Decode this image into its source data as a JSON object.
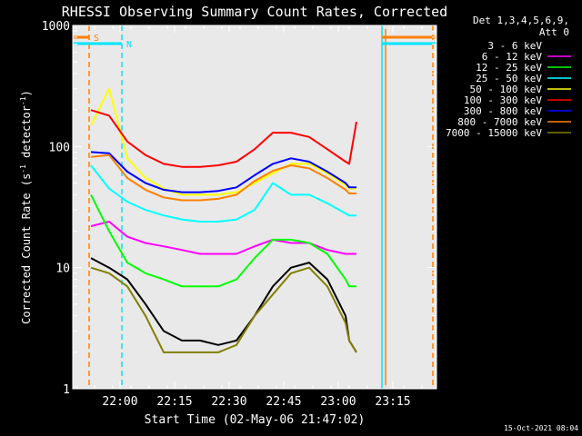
{
  "stamp": "15-Oct-2021 08:04",
  "colors": {
    "background": "#000000",
    "axis": "#ffffff",
    "bands": [
      "#000000",
      "#ff00ff",
      "#00ff00",
      "#00ffff",
      "#ffff00",
      "#ff0000",
      "#0000ff",
      "#ff8000",
      "#808000"
    ],
    "cyan": "#00e5ff",
    "orange": "#ff7f00"
  },
  "chart_data": {
    "type": "line",
    "title": "RHESSI Observing Summary Count Rates, Corrected",
    "xlabel": "Start Time (02-May-06 21:47:02)",
    "ylabel": "Corrected Count Rate (s",
    "ylabel_sup1": "-1",
    "ylabel_mid": " detector",
    "ylabel_sup2": "-1",
    "ylabel_end": ")",
    "y_scale": "log",
    "ylim": [
      1,
      1000
    ],
    "xlim_minutes": [
      0,
      100
    ],
    "x_ticks": [
      {
        "minute": 13,
        "label": "22:00"
      },
      {
        "minute": 28,
        "label": "22:15"
      },
      {
        "minute": 43,
        "label": "22:30"
      },
      {
        "minute": 58,
        "label": "22:45"
      },
      {
        "minute": 73,
        "label": "23:00"
      },
      {
        "minute": 88,
        "label": "23:15"
      }
    ],
    "y_ticks": [
      {
        "value": 1,
        "label": "1"
      },
      {
        "value": 10,
        "label": "10"
      },
      {
        "value": 100,
        "label": "100"
      },
      {
        "value": 1000,
        "label": "1000"
      }
    ],
    "legend": {
      "placement": "right",
      "header": [
        "Det 1,3,4,5,6,9,",
        "Att 0"
      ]
    },
    "series": [
      {
        "name": "3 - 6 keV",
        "color_index": 0,
        "x": [
          0,
          5,
          10,
          15,
          20,
          25,
          30,
          35,
          40,
          45,
          50,
          55,
          60,
          65,
          70,
          75,
          76,
          78
        ],
        "y": [
          0,
          12,
          10,
          8,
          5,
          3,
          2.5,
          2.5,
          2.3,
          2.5,
          4,
          7,
          10,
          11,
          8,
          4,
          2.5,
          2
        ]
      },
      {
        "name": "6 - 12 keV",
        "color_index": 1,
        "x": [
          0,
          5,
          10,
          15,
          20,
          25,
          30,
          35,
          40,
          45,
          50,
          55,
          60,
          65,
          70,
          75,
          76,
          78
        ],
        "y": [
          0,
          22,
          24,
          18,
          16,
          15,
          14,
          13,
          13,
          13,
          15,
          17,
          16,
          16,
          14,
          13,
          13,
          13
        ]
      },
      {
        "name": "12 - 25 keV",
        "color_index": 2,
        "x": [
          0,
          5,
          10,
          15,
          20,
          25,
          30,
          35,
          40,
          45,
          50,
          55,
          60,
          65,
          70,
          75,
          76,
          78
        ],
        "y": [
          0,
          40,
          20,
          11,
          9,
          8,
          7,
          7,
          7,
          8,
          12,
          17,
          17,
          16,
          13,
          8,
          7,
          7
        ]
      },
      {
        "name": "25 - 50 keV",
        "color_index": 3,
        "x": [
          0,
          5,
          10,
          15,
          20,
          25,
          30,
          35,
          40,
          45,
          50,
          55,
          60,
          65,
          70,
          75,
          76,
          78
        ],
        "y": [
          0,
          70,
          45,
          35,
          30,
          27,
          25,
          24,
          24,
          25,
          30,
          50,
          40,
          40,
          34,
          28,
          27,
          27
        ]
      },
      {
        "name": "50 - 100 keV",
        "color_index": 4,
        "x": [
          0,
          5,
          10,
          15,
          20,
          25,
          30,
          35,
          40,
          45,
          50,
          55,
          60,
          65,
          70,
          75,
          76,
          78
        ],
        "y": [
          0,
          150,
          300,
          80,
          55,
          45,
          40,
          40,
          40,
          42,
          50,
          60,
          72,
          72,
          60,
          48,
          45,
          45
        ]
      },
      {
        "name": "100 - 300 keV",
        "color_index": 5,
        "x": [
          0,
          5,
          10,
          15,
          20,
          25,
          30,
          35,
          40,
          45,
          50,
          55,
          60,
          65,
          70,
          75,
          76,
          78
        ],
        "y": [
          0,
          200,
          180,
          110,
          85,
          72,
          68,
          68,
          70,
          75,
          95,
          130,
          130,
          120,
          95,
          75,
          72,
          160
        ]
      },
      {
        "name": "300 - 800 keV",
        "color_index": 6,
        "x": [
          0,
          5,
          10,
          15,
          20,
          25,
          30,
          35,
          40,
          45,
          50,
          55,
          60,
          65,
          70,
          75,
          76,
          78
        ],
        "y": [
          0,
          90,
          88,
          62,
          50,
          44,
          42,
          42,
          43,
          46,
          58,
          72,
          80,
          75,
          62,
          50,
          46,
          46
        ]
      },
      {
        "name": "800 - 7000 keV",
        "color_index": 7,
        "x": [
          0,
          5,
          10,
          15,
          20,
          25,
          30,
          35,
          40,
          45,
          50,
          55,
          60,
          65,
          70,
          75,
          76,
          78
        ],
        "y": [
          0,
          82,
          85,
          55,
          44,
          38,
          36,
          36,
          37,
          40,
          52,
          63,
          70,
          66,
          55,
          44,
          41,
          41
        ]
      },
      {
        "name": "7000 - 15000 keV",
        "color_index": 8,
        "x": [
          0,
          5,
          10,
          15,
          20,
          25,
          30,
          35,
          40,
          45,
          50,
          55,
          60,
          65,
          70,
          75,
          76,
          78
        ],
        "y": [
          0,
          10,
          9,
          7,
          4,
          2,
          2,
          2,
          2,
          2.3,
          4,
          6,
          9,
          10,
          7,
          3.5,
          2.5,
          2
        ]
      }
    ],
    "flag_labels": [
      {
        "label": "S",
        "color": "orange",
        "start_minute": 0,
        "end_minute": 4.5
      },
      {
        "label": "N",
        "color": "cyan",
        "start_minute": 0,
        "end_minute": 13.5
      },
      {
        "label": "",
        "color": "cyan",
        "start_minute": 85,
        "end_minute": 100
      },
      {
        "label": "",
        "color": "orange",
        "start_minute": 85,
        "end_minute": 100
      }
    ],
    "vertical_lines": [
      {
        "minute": 4.5,
        "color": "orange",
        "style": "dashed"
      },
      {
        "minute": 13.5,
        "color": "cyan",
        "style": "dashed"
      },
      {
        "minute": 85,
        "color": "cyan",
        "style": "solid"
      },
      {
        "minute": 86,
        "color": "orange",
        "style": "solid"
      },
      {
        "minute": 99,
        "color": "orange",
        "style": "dashed"
      }
    ]
  }
}
